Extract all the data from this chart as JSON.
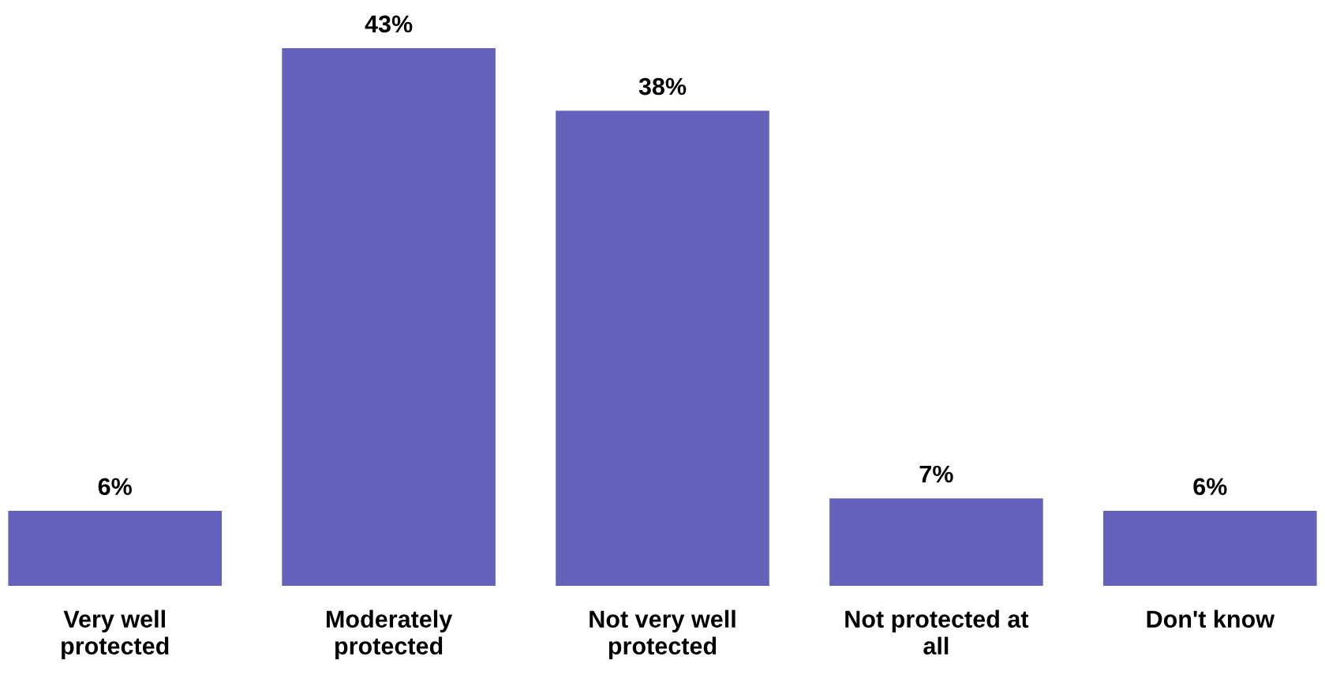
{
  "chart_data": {
    "type": "bar",
    "categories": [
      "Very well\nprotected",
      "Moderately\nprotected",
      "Not very well\nprotected",
      "Not protected at\nall",
      "Don't know"
    ],
    "values": [
      6,
      43,
      38,
      7,
      6
    ],
    "color": "#6363bb",
    "value_labels": [
      "6%",
      "43%",
      "38%",
      "7%",
      "6%"
    ],
    "tick_labels": "x",
    "grid": false,
    "legend": false
  }
}
